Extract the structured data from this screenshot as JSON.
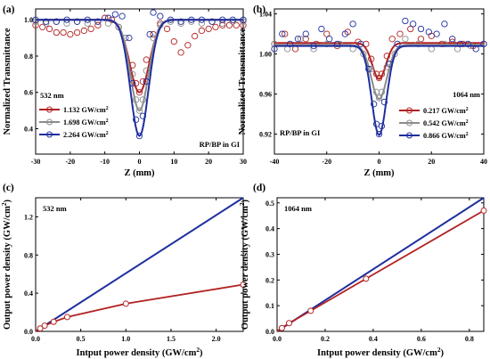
{
  "chart_data": [
    {
      "type": "scatter",
      "panel_label": "(a)",
      "xlabel": "Z (mm)",
      "ylabel": "Normalized Transmittance",
      "xlim": [
        -30,
        30
      ],
      "ylim": [
        0.26,
        1.06
      ],
      "xticks": [
        -30,
        -20,
        -10,
        0,
        10,
        20,
        30
      ],
      "xtick_labels": [
        "-30",
        "-20",
        "-10",
        "0",
        "10",
        "20",
        "30"
      ],
      "yticks": [
        0.4,
        0.6,
        0.8,
        1.0
      ],
      "ytick_labels": [
        "0.4",
        "0.6",
        "0.8",
        "1.0"
      ],
      "annotations": [
        "532 nm",
        "RP/BP in GI"
      ],
      "legend_position": "bottom-left",
      "series": [
        {
          "name": "1.132 GW/cm",
          "name_sup": "2",
          "color": "#b22222",
          "fit_min": 0.6,
          "fit_width": 2.8,
          "x": [
            -30,
            -28,
            -26,
            -24,
            -22,
            -20,
            -18,
            -16,
            -14,
            -12,
            -10,
            -8,
            -6,
            -4,
            -2,
            -1,
            0,
            1,
            2,
            4,
            6,
            8,
            10,
            12,
            14,
            16,
            18,
            20,
            22,
            24,
            26,
            28,
            30
          ],
          "y": [
            0.97,
            0.96,
            0.95,
            0.93,
            0.93,
            0.92,
            0.93,
            0.94,
            0.95,
            0.97,
            1.01,
            1.0,
            0.96,
            0.9,
            0.75,
            0.65,
            0.6,
            0.66,
            0.78,
            0.92,
            0.98,
            0.95,
            0.88,
            0.82,
            0.86,
            0.91,
            0.94,
            0.95,
            0.96,
            0.97,
            0.97,
            0.97,
            0.97
          ]
        },
        {
          "name": "1.698 GW/cm",
          "name_sup": "2",
          "color": "#8c8c8c",
          "fit_min": 0.5,
          "fit_width": 2.6,
          "x": [
            -30,
            -27,
            -24,
            -21,
            -18,
            -15,
            -12,
            -9,
            -6,
            -4,
            -2,
            -1,
            0,
            1,
            2,
            4,
            6,
            9,
            12,
            15,
            18,
            21,
            24,
            27,
            30
          ],
          "y": [
            0.99,
            0.98,
            0.99,
            0.98,
            0.99,
            0.98,
            0.99,
            0.98,
            0.96,
            0.9,
            0.7,
            0.56,
            0.5,
            0.56,
            0.72,
            0.9,
            0.97,
            0.99,
            0.98,
            0.99,
            0.98,
            0.99,
            0.98,
            0.99,
            0.99
          ]
        },
        {
          "name": "2.264 GW/cm",
          "name_sup": "2",
          "color": "#1f2f9e",
          "fit_min": 0.36,
          "fit_width": 2.6,
          "x": [
            -30,
            -27,
            -24,
            -21,
            -18,
            -15,
            -12,
            -9,
            -7,
            -5,
            -3,
            -2,
            -1,
            0,
            1,
            2,
            3,
            4,
            6,
            9,
            12,
            15,
            18,
            21,
            24,
            27,
            30
          ],
          "y": [
            1.0,
            0.99,
            0.99,
            1.0,
            0.99,
            1.0,
            0.99,
            1.01,
            1.03,
            1.02,
            0.9,
            0.65,
            0.45,
            0.36,
            0.47,
            0.66,
            0.92,
            1.04,
            1.02,
            1.0,
            0.99,
            1.0,
            1.0,
            0.99,
            1.0,
            1.0,
            1.0
          ]
        }
      ]
    },
    {
      "type": "scatter",
      "panel_label": "(b)",
      "xlabel": "Z (mm)",
      "ylabel": "Normalized Transmittance",
      "xlim": [
        -40,
        40
      ],
      "ylim": [
        0.9,
        1.045
      ],
      "xticks": [
        -40,
        -20,
        0,
        20,
        40
      ],
      "xtick_labels": [
        "-40",
        "-20",
        "0",
        "20",
        "40"
      ],
      "yticks": [
        0.92,
        0.96,
        1.0,
        1.04
      ],
      "ytick_labels": [
        "0.92",
        "0.96",
        "1.00",
        "1.04"
      ],
      "annotations": [
        "1064 nm",
        "RP/BP in GI"
      ],
      "legend_position": "bottom-right",
      "series": [
        {
          "name": "0.217 GW/cm",
          "name_sup": "2",
          "color": "#b22222",
          "fit_min": 0.975,
          "fit_width": 2.6,
          "fit_base": 1.011,
          "x": [
            -40,
            -36,
            -32,
            -28,
            -24,
            -20,
            -16,
            -12,
            -8,
            -5,
            -3,
            -1,
            0,
            1,
            3,
            5,
            8,
            12,
            16,
            20,
            24,
            28,
            32,
            36,
            40
          ],
          "y": [
            1.01,
            1.02,
            1.005,
            1.015,
            1.01,
            1.02,
            1.008,
            1.022,
            1.012,
            1.01,
            0.995,
            0.98,
            0.976,
            0.98,
            0.998,
            1.015,
            1.02,
            1.025,
            1.015,
            1.018,
            1.01,
            1.012,
            1.01,
            1.008,
            1.01
          ]
        },
        {
          "name": "0.542 GW/cm",
          "name_sup": "2",
          "color": "#8c8c8c",
          "fit_min": 0.955,
          "fit_width": 3.0,
          "fit_base": 1.009,
          "x": [
            -40,
            -35,
            -30,
            -25,
            -20,
            -15,
            -10,
            -6,
            -3,
            -1,
            0,
            1,
            3,
            6,
            10,
            15,
            20,
            25,
            30,
            35,
            40
          ],
          "y": [
            1.01,
            1.005,
            1.015,
            1.005,
            1.01,
            1.01,
            1.005,
            1.0,
            0.985,
            0.962,
            0.956,
            0.962,
            0.987,
            1.0,
            1.015,
            1.01,
            1.005,
            1.01,
            1.005,
            1.008,
            1.01
          ]
        },
        {
          "name": "0.866 GW/cm",
          "name_sup": "2",
          "color": "#1f2f9e",
          "fit_min": 0.919,
          "fit_width": 2.8,
          "fit_base": 1.008,
          "x": [
            -40,
            -37,
            -34,
            -31,
            -28,
            -25,
            -22,
            -19,
            -16,
            -13,
            -10,
            -7,
            -4,
            -2,
            -1,
            0,
            1,
            2,
            4,
            7,
            10,
            13,
            16,
            19,
            22,
            25,
            28,
            31,
            34,
            37,
            40
          ],
          "y": [
            1.005,
            1.02,
            1.01,
            1.015,
            1.02,
            1.008,
            1.025,
            1.015,
            1.01,
            1.02,
            1.03,
            1.01,
            0.985,
            0.95,
            0.93,
            0.92,
            0.928,
            0.952,
            0.99,
            1.01,
            1.033,
            1.03,
            1.025,
            1.022,
            1.02,
            1.03,
            1.015,
            1.01,
            1.01,
            1.005,
            1.01
          ]
        }
      ]
    },
    {
      "type": "line",
      "panel_label": "(c)",
      "xlabel": "Intput power density (GW/cm",
      "xlabel_sup": "2",
      "xlabel_tail": ")",
      "ylabel": "Output power density (GW/cm",
      "ylabel_sup": "2",
      "ylabel_tail": ")",
      "xlim": [
        0,
        2.3
      ],
      "ylim": [
        0,
        1.4
      ],
      "xticks": [
        0,
        0.5,
        1.0,
        1.5,
        2.0
      ],
      "xtick_labels": [
        "0.0",
        "0.5",
        "1.0",
        "1.5",
        "2.0"
      ],
      "yticks": [
        0,
        0.4,
        0.8,
        1.2
      ],
      "ytick_labels": [
        "0.0",
        "0.4",
        "0.8",
        "1.2"
      ],
      "annotations": [
        "532 nm"
      ],
      "series": [
        {
          "role": "linear",
          "color": "#1f2f9e",
          "x": [
            0,
            2.3
          ],
          "y": [
            0,
            1.4
          ]
        },
        {
          "role": "measured",
          "color": "#b22222",
          "x": [
            0.05,
            0.1,
            0.2,
            0.35,
            1.0,
            2.3
          ],
          "y": [
            0.03,
            0.06,
            0.1,
            0.15,
            0.29,
            0.49
          ]
        }
      ]
    },
    {
      "type": "line",
      "panel_label": "(d)",
      "xlabel": "Intput power density (GW/cm",
      "xlabel_sup": "2",
      "xlabel_tail": ")",
      "ylabel": "Output power density (GW/cm",
      "ylabel_sup": "2",
      "ylabel_tail": ")",
      "xlim": [
        0,
        0.86
      ],
      "ylim": [
        0,
        0.52
      ],
      "xticks": [
        0,
        0.2,
        0.4,
        0.6,
        0.8
      ],
      "xtick_labels": [
        "0.0",
        "0.2",
        "0.4",
        "0.6",
        "0.8"
      ],
      "yticks": [
        0,
        0.1,
        0.2,
        0.3,
        0.4,
        0.5
      ],
      "ytick_labels": [
        "0.0",
        "0.1",
        "0.2",
        "0.3",
        "0.4",
        "0.5"
      ],
      "annotations": [
        "1064 nm"
      ],
      "series": [
        {
          "role": "linear",
          "color": "#1f2f9e",
          "x": [
            0,
            0.86
          ],
          "y": [
            0,
            0.52
          ]
        },
        {
          "role": "measured",
          "color": "#b22222",
          "x": [
            0.02,
            0.05,
            0.14,
            0.37,
            0.86
          ],
          "y": [
            0.013,
            0.032,
            0.08,
            0.205,
            0.47
          ]
        }
      ]
    }
  ]
}
